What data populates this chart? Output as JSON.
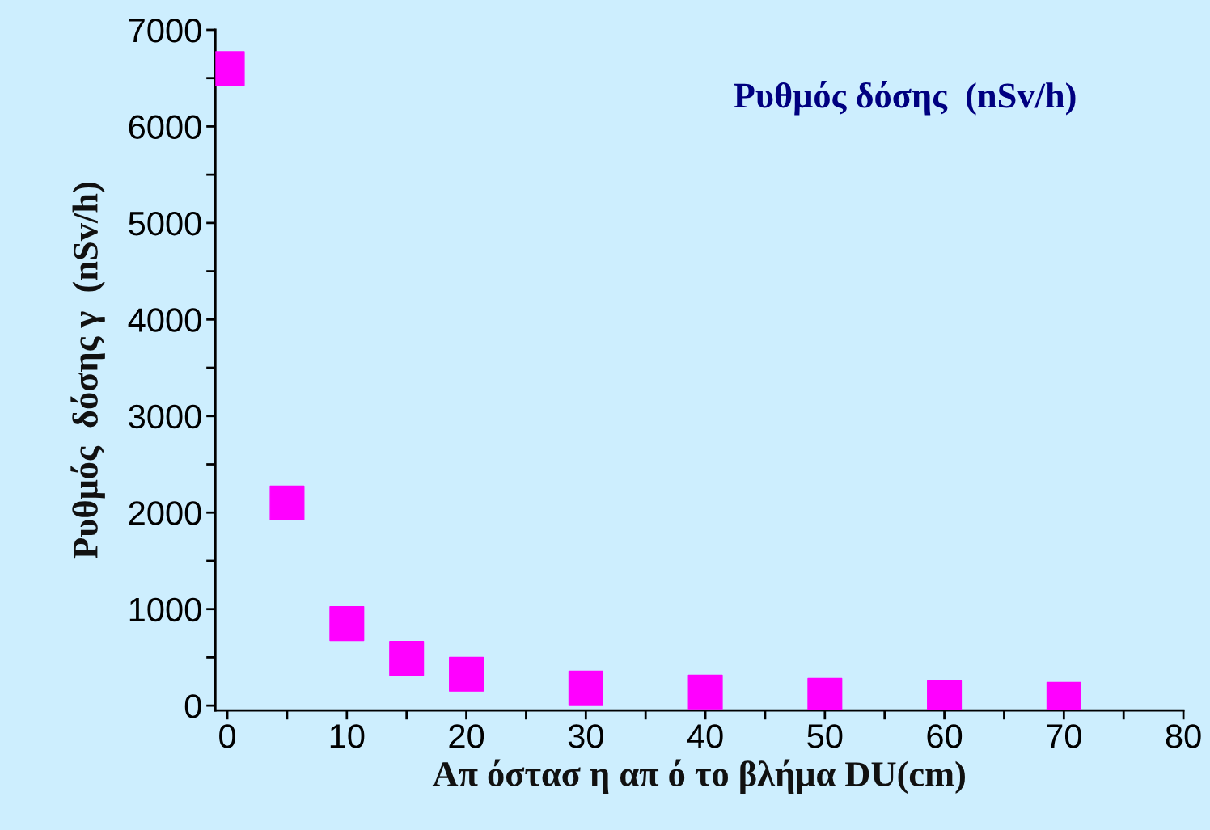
{
  "chart_data": {
    "type": "scatter",
    "xlabel": "Απ όστασ η απ ό το βλήμα DU(cm)",
    "ylabel": "Ρυθμός  δόσης γ  (nSv/h)",
    "annotations": [
      "Ρυθμός δόσης  (nSv/h)"
    ],
    "x": [
      0,
      5,
      10,
      15,
      20,
      30,
      40,
      50,
      60,
      70
    ],
    "series": [
      {
        "color": "#ff00ff",
        "values": [
          6600,
          2100,
          850,
          490,
          325,
          183,
          141,
          108,
          83,
          66
        ]
      }
    ],
    "marker": "square",
    "xlim": [
      -1,
      80
    ],
    "xticks": [
      0,
      {
        "value": 5,
        "label": null
      },
      10,
      {
        "value": 15,
        "label": null
      },
      20,
      {
        "value": 25,
        "label": null
      },
      30,
      {
        "value": 35,
        "label": null
      },
      40,
      {
        "value": 45,
        "label": null
      },
      50,
      {
        "value": 55,
        "label": null
      },
      60,
      {
        "value": 65,
        "label": null
      },
      70,
      {
        "value": 75,
        "label": null
      },
      80
    ],
    "ylim": [
      -50,
      7000
    ],
    "yticks": [
      0,
      {
        "value": 500,
        "label": null
      },
      1000,
      {
        "value": 1500,
        "label": null
      },
      2000,
      {
        "value": 2500,
        "label": null
      },
      3000,
      {
        "value": 3500,
        "label": null
      },
      4000,
      {
        "value": 4500,
        "label": null
      },
      5000,
      {
        "value": 5500,
        "label": null
      },
      6000,
      {
        "value": 6500,
        "label": null
      },
      7000
    ],
    "grid": false,
    "legend": false
  }
}
